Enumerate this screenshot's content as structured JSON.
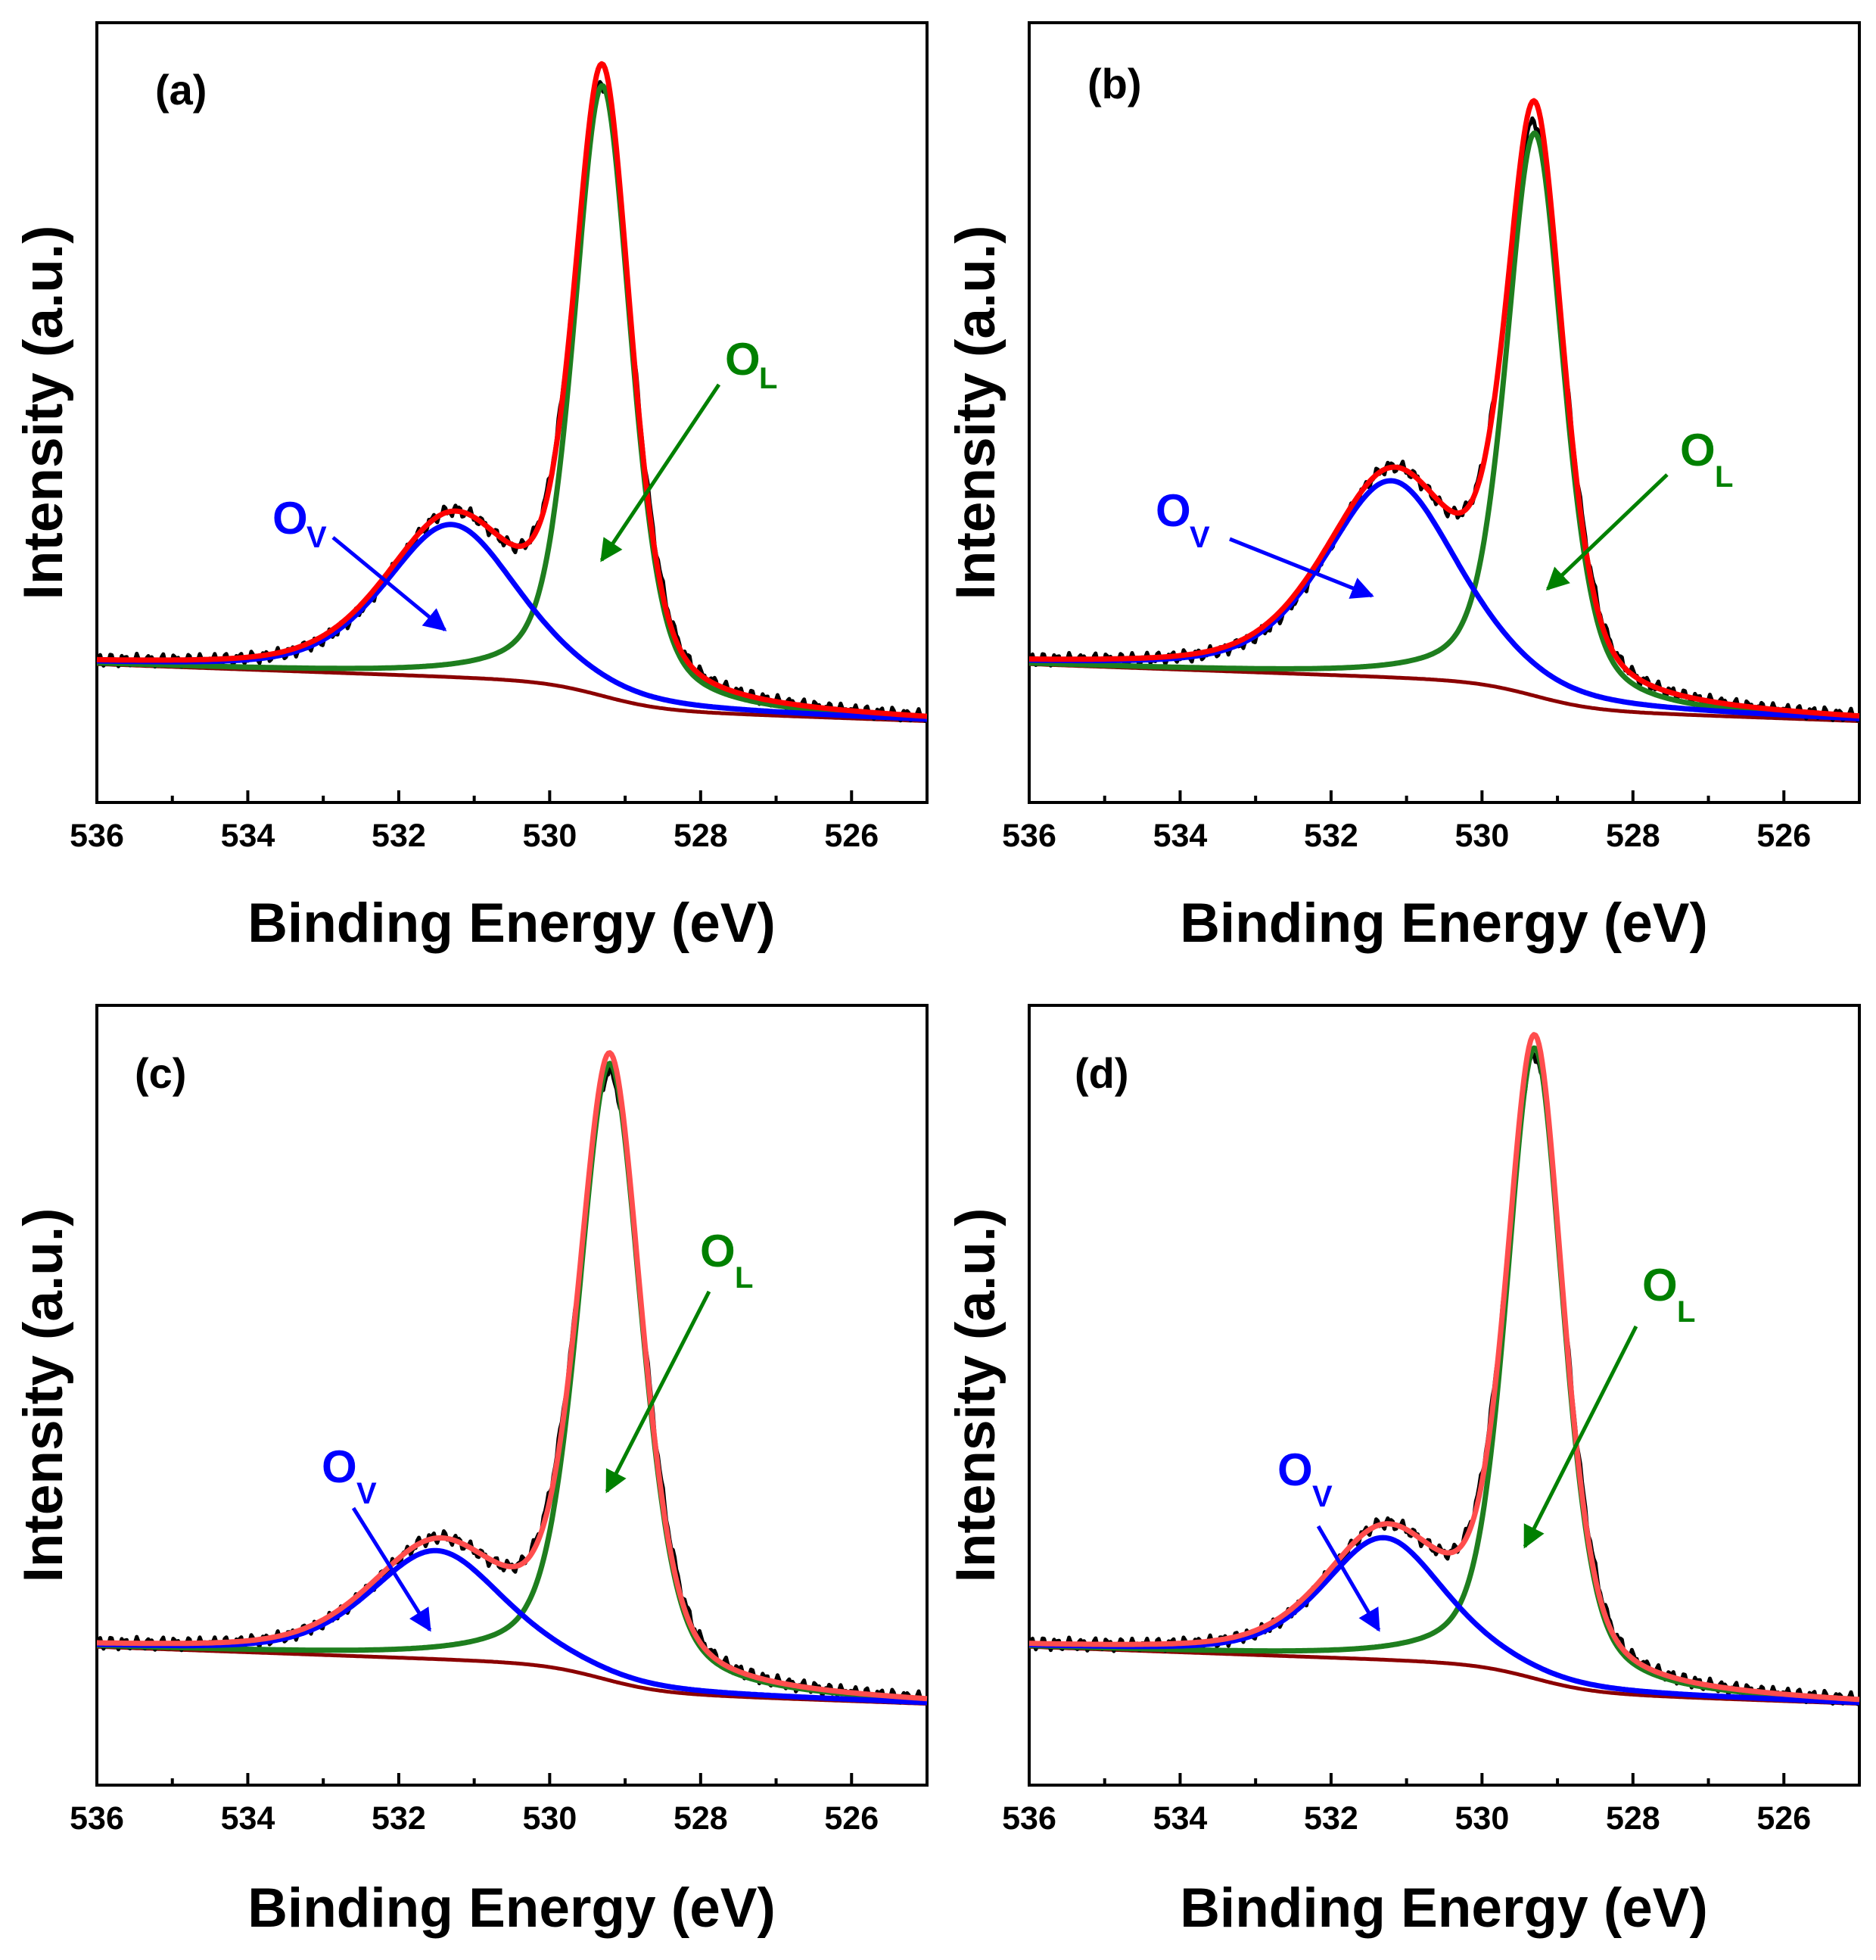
{
  "figure": {
    "panels_order": [
      "a",
      "b",
      "c",
      "d"
    ]
  },
  "chart_data": [
    {
      "type": "line",
      "panel_label": "(a)",
      "xlabel": "Binding Energy (eV)",
      "ylabel": "Intensity (a.u.)",
      "xlim": [
        536,
        525
      ],
      "x_ticks": [
        "536",
        "534",
        "532",
        "530",
        "528",
        "526"
      ],
      "x_tick_values": [
        536,
        534,
        532,
        530,
        528,
        526
      ],
      "ylim": [
        -0.12,
        1.03
      ],
      "y_ticks_shown": false,
      "components": {
        "OL": {
          "center": 529.3,
          "height": 0.9,
          "fwhm": 0.9
        },
        "OV": {
          "center": 531.3,
          "height": 0.225,
          "fwhm": 2.1
        },
        "background": {
          "low": 0.0,
          "high": 0.04,
          "step_center": 529.3,
          "step_width": 1.6,
          "tilt": 0.004
        }
      },
      "annotations": [
        {
          "label": "O",
          "sub": "V",
          "color": "#0000ff",
          "target_x": 531.0,
          "target_y": 0.11
        },
        {
          "label": "O",
          "sub": "L",
          "color": "#008000",
          "target_x": 529.25,
          "target_y": 0.24
        }
      ],
      "series_colors": {
        "raw": "#000000",
        "fit": "#ff0000",
        "OL": "#1e7e1e",
        "OV": "#0000ff",
        "background": "#8b0000"
      }
    },
    {
      "type": "line",
      "panel_label": "(b)",
      "xlabel": "Binding Energy (eV)",
      "ylabel": "Intensity (a.u.)",
      "xlim": [
        536,
        525
      ],
      "x_ticks": [
        "536",
        "534",
        "532",
        "530",
        "528",
        "526"
      ],
      "x_tick_values": [
        536,
        534,
        532,
        530,
        528,
        526
      ],
      "ylim": [
        -0.12,
        1.03
      ],
      "y_ticks_shown": false,
      "components": {
        "OL": {
          "center": 529.3,
          "height": 0.83,
          "fwhm": 0.9
        },
        "OV": {
          "center": 531.2,
          "height": 0.29,
          "fwhm": 2.1
        },
        "background": {
          "low": 0.0,
          "high": 0.04,
          "step_center": 529.3,
          "step_width": 1.6,
          "tilt": 0.004
        }
      },
      "annotations": [
        {
          "label": "O",
          "sub": "V",
          "color": "#0000ff",
          "target_x": 530.8,
          "target_y": 0.16
        },
        {
          "label": "O",
          "sub": "L",
          "color": "#008000",
          "target_x": 529.25,
          "target_y": 0.17
        }
      ],
      "series_colors": {
        "raw": "#000000",
        "fit": "#ff0000",
        "OL": "#1e7e1e",
        "OV": "#0000ff",
        "background": "#8b0000"
      }
    },
    {
      "type": "line",
      "panel_label": "(c)",
      "xlabel": "Binding Energy (eV)",
      "ylabel": "Intensity (a.u.)",
      "xlim": [
        536,
        525
      ],
      "x_ticks": [
        "536",
        "534",
        "532",
        "530",
        "528",
        "526"
      ],
      "x_tick_values": [
        536,
        534,
        532,
        530,
        528,
        526
      ],
      "ylim": [
        -0.12,
        1.03
      ],
      "y_ticks_shown": false,
      "components": {
        "OL": {
          "center": 529.2,
          "height": 0.91,
          "fwhm": 1.0
        },
        "OV": {
          "center": 531.5,
          "height": 0.16,
          "fwhm": 2.1
        },
        "background": {
          "low": 0.0,
          "high": 0.04,
          "step_center": 529.3,
          "step_width": 1.6,
          "tilt": 0.004
        }
      },
      "annotations": [
        {
          "label": "O",
          "sub": "V",
          "color": "#0000ff",
          "target_x": 531.3,
          "target_y": 0.09
        },
        {
          "label": "O",
          "sub": "L",
          "color": "#008000",
          "target_x": 529.2,
          "target_y": 0.33
        }
      ],
      "series_colors": {
        "raw": "#000000",
        "fit": "#ff4d4d",
        "OL": "#1e7e1e",
        "OV": "#0000ff",
        "background": "#8b0000"
      }
    },
    {
      "type": "line",
      "panel_label": "(d)",
      "xlabel": "Binding Energy (eV)",
      "ylabel": "Intensity (a.u.)",
      "xlim": [
        536,
        525
      ],
      "x_ticks": [
        "536",
        "534",
        "532",
        "530",
        "528",
        "526"
      ],
      "x_tick_values": [
        536,
        534,
        532,
        530,
        528,
        526
      ],
      "ylim": [
        -0.12,
        1.03
      ],
      "y_ticks_shown": false,
      "components": {
        "OL": {
          "center": 529.3,
          "height": 0.93,
          "fwhm": 0.9
        },
        "OV": {
          "center": 531.3,
          "height": 0.18,
          "fwhm": 1.9
        },
        "background": {
          "low": 0.0,
          "high": 0.04,
          "step_center": 529.3,
          "step_width": 1.6,
          "tilt": 0.004
        }
      },
      "annotations": [
        {
          "label": "O",
          "sub": "V",
          "color": "#0000ff",
          "target_x": 531.1,
          "target_y": 0.09
        },
        {
          "label": "O",
          "sub": "L",
          "color": "#008000",
          "target_x": 529.35,
          "target_y": 0.26
        }
      ],
      "series_colors": {
        "raw": "#000000",
        "fit": "#ff4d4d",
        "OL": "#1e7e1e",
        "OV": "#0000ff",
        "background": "#8b0000"
      }
    }
  ]
}
